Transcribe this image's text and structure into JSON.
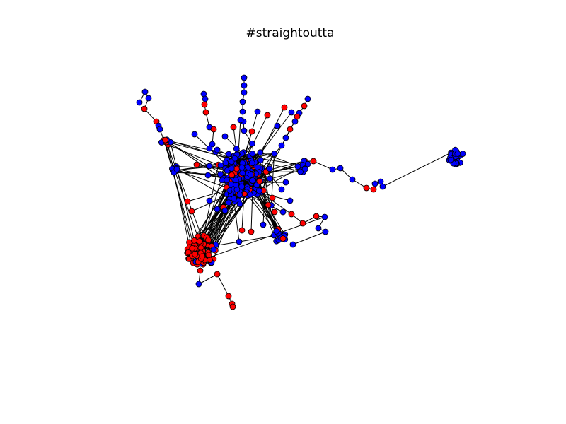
{
  "figure": {
    "title": "#straightoutta"
  },
  "legend_colors": {
    "red_group": "#ff0000",
    "blue_group": "#0000ff",
    "edge": "#000000"
  }
}
